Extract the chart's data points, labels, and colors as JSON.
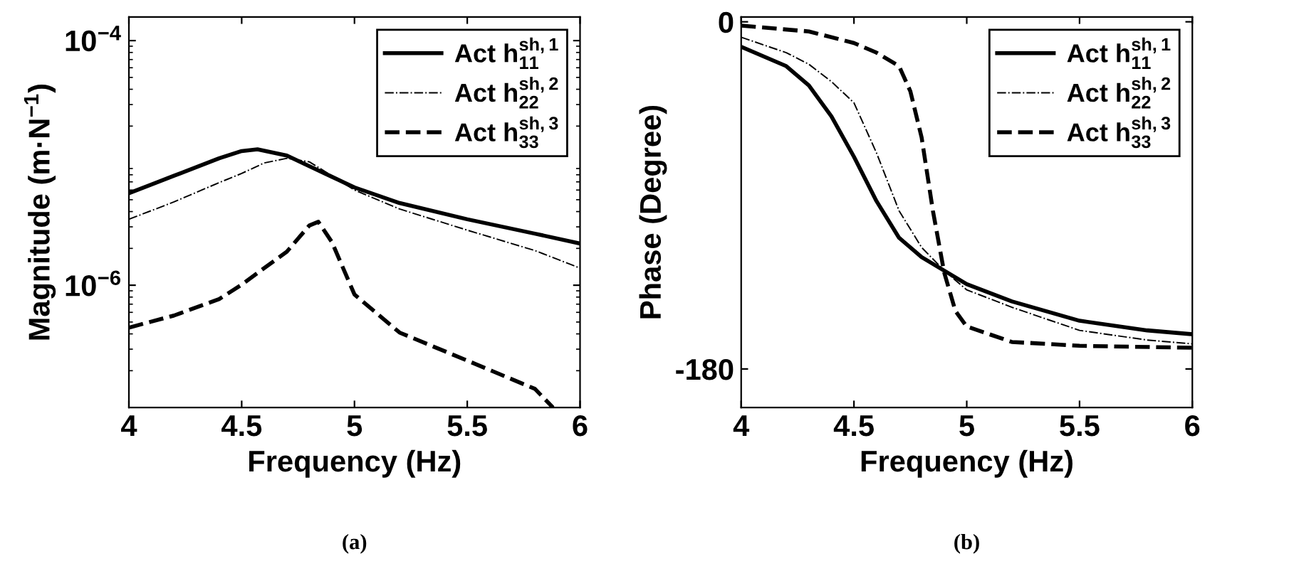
{
  "chart_data": [
    {
      "type": "line",
      "xlabel": "Frequency (Hz)",
      "ylabel": "Magnitude (m·N$^{−1}$)",
      "log": "y",
      "xlim": [
        4,
        6
      ],
      "xticks": [
        4,
        4.5,
        5,
        5.5,
        6
      ],
      "ylim": [
        1e-07,
        0.000156
      ],
      "yticks": [
        {
          "value": 1e-06,
          "label": "10$^{−6}$"
        },
        {
          "value": 0.0001,
          "label": "10$^{−4}$"
        }
      ],
      "grid": false,
      "legend": "top right",
      "annotations": [
        "(a)"
      ],
      "series": [
        {
          "name": "Act h$^{sh,1}$$_{11}$",
          "color": "#000000",
          "line_style": "solid",
          "x": [
            4,
            4.2,
            4.4,
            4.5,
            4.57,
            4.7,
            4.8,
            4.9,
            5,
            5.2,
            5.5,
            5.8,
            6
          ],
          "values": [
            5.65e-06,
            7.85e-06,
            1.09e-05,
            1.25e-05,
            1.29e-05,
            1.15e-05,
            9.4e-06,
            7.7e-06,
            6.3e-06,
            4.7e-06,
            3.46e-06,
            2.64e-06,
            2.19e-06
          ]
        },
        {
          "name": "Act h$^{sh,2}$$_{22}$",
          "color": "#000000",
          "line_style": "dashdot",
          "x": [
            4,
            4.2,
            4.4,
            4.5,
            4.6,
            4.7,
            4.8,
            4.9,
            5,
            5.2,
            5.5,
            5.8,
            6
          ],
          "values": [
            3.46e-06,
            4.8e-06,
            6.9e-06,
            8.2e-06,
            1e-05,
            1.09e-05,
            1.02e-05,
            7.85e-06,
            6e-06,
            4.2e-06,
            2.82e-06,
            1.92e-06,
            1.38e-06
          ]
        },
        {
          "name": "Act h$^{sh,3}$$_{33}$",
          "color": "#000000",
          "line_style": "dashed",
          "x": [
            4,
            4.2,
            4.4,
            4.5,
            4.6,
            4.7,
            4.8,
            4.84,
            4.9,
            5,
            5.2,
            5.5,
            5.8,
            5.88
          ],
          "values": [
            4.5e-07,
            5.65e-07,
            7.7e-07,
            1.01e-06,
            1.38e-06,
            1.88e-06,
            3.08e-06,
            3.3e-06,
            2.25e-06,
            8.4e-07,
            4.1e-07,
            2.42e-07,
            1.42e-07,
            1e-07
          ]
        }
      ]
    },
    {
      "type": "line",
      "xlabel": "Frequency (Hz)",
      "ylabel": "Phase (Degree)",
      "xlim": [
        4,
        6
      ],
      "xticks": [
        4,
        4.5,
        5,
        5.5,
        6
      ],
      "ylim": [
        -200,
        2.5
      ],
      "yticks": [
        -180,
        0
      ],
      "grid": false,
      "legend": "top right",
      "annotations": [
        "(b)"
      ],
      "series": [
        {
          "name": "Act h$^{sh,1}$$_{11}$",
          "color": "#000000",
          "line_style": "solid",
          "x": [
            4,
            4.2,
            4.3,
            4.4,
            4.5,
            4.6,
            4.7,
            4.8,
            4.9,
            5,
            5.2,
            5.5,
            5.8,
            6
          ],
          "values": [
            -13,
            -23,
            -33,
            -49,
            -70,
            -93,
            -112,
            -122,
            -129,
            -136,
            -145,
            -155,
            -160,
            -162
          ]
        },
        {
          "name": "Act h$^{sh,2}$$_{22}$",
          "color": "#000000",
          "line_style": "dashdot",
          "x": [
            4,
            4.2,
            4.3,
            4.4,
            4.5,
            4.6,
            4.7,
            4.8,
            4.9,
            5,
            5.2,
            5.5,
            5.8,
            6
          ],
          "values": [
            -8,
            -16,
            -22,
            -31,
            -42,
            -68,
            -98,
            -117,
            -129,
            -139,
            -148,
            -160,
            -165,
            -167
          ]
        },
        {
          "name": "Act h$^{sh,3}$$_{33}$",
          "color": "#000000",
          "line_style": "dashed",
          "x": [
            4,
            4.3,
            4.5,
            4.6,
            4.7,
            4.75,
            4.8,
            4.85,
            4.9,
            4.95,
            5,
            5.2,
            5.5,
            6
          ],
          "values": [
            -2,
            -5,
            -11,
            -16,
            -23,
            -36,
            -60,
            -98,
            -130,
            -150,
            -158,
            -166,
            -168,
            -169
          ]
        }
      ]
    }
  ]
}
